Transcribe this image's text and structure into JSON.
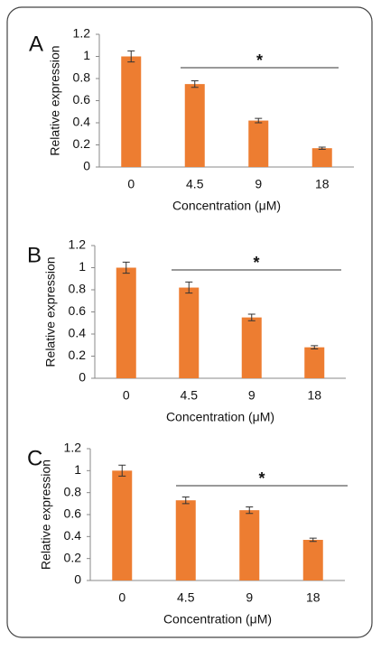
{
  "chart_data": [
    {
      "type": "bar",
      "panel": "A",
      "y_label": "Relative expression",
      "x_label": "Concentration (μM)",
      "categories": [
        "0",
        "4.5",
        "9",
        "18"
      ],
      "values": [
        1.0,
        0.75,
        0.42,
        0.17
      ],
      "errors": [
        0.05,
        0.03,
        0.02,
        0.01
      ],
      "color": "#ed7d31",
      "ylim": [
        0,
        1.2
      ],
      "yticks": [
        0,
        0.2,
        0.4,
        0.6,
        0.8,
        1,
        1.2
      ],
      "annotation": "*"
    },
    {
      "type": "bar",
      "panel": "B",
      "y_label": "Relative expression",
      "x_label": "Concentration (μM)",
      "categories": [
        "0",
        "4.5",
        "9",
        "18"
      ],
      "values": [
        1.0,
        0.82,
        0.55,
        0.28
      ],
      "errors": [
        0.05,
        0.05,
        0.03,
        0.015
      ],
      "color": "#ed7d31",
      "ylim": [
        0,
        1.2
      ],
      "yticks": [
        0,
        0.2,
        0.4,
        0.6,
        0.8,
        1,
        1.2
      ],
      "annotation": "*"
    },
    {
      "type": "bar",
      "panel": "C",
      "y_label": "Relative expression",
      "x_label": "Concentration (μM)",
      "categories": [
        "0",
        "4.5",
        "9",
        "18"
      ],
      "values": [
        1.0,
        0.73,
        0.64,
        0.37
      ],
      "errors": [
        0.05,
        0.03,
        0.03,
        0.015
      ],
      "color": "#ed7d31",
      "ylim": [
        0,
        1.2
      ],
      "yticks": [
        0,
        0.2,
        0.4,
        0.6,
        0.8,
        1,
        1.2
      ],
      "annotation": "*"
    }
  ]
}
